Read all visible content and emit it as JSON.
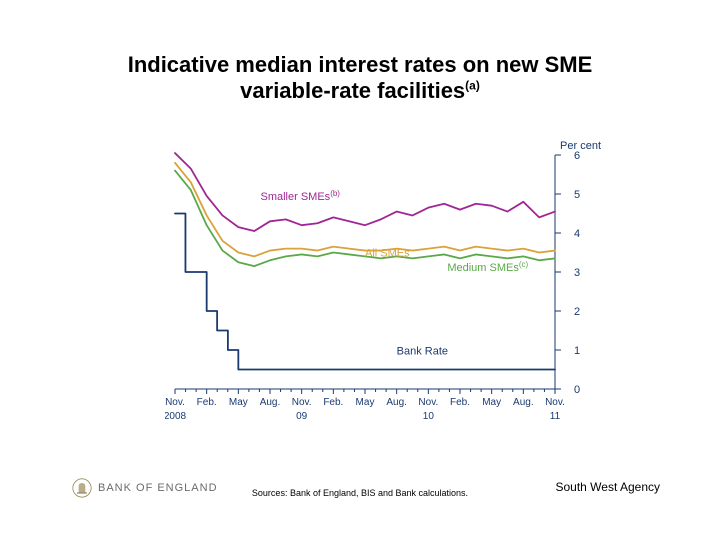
{
  "title": {
    "line1": "Indicative median interest rates on new SME",
    "line2_prefix": "variable-rate facilities",
    "line2_sup": "(a)"
  },
  "chart": {
    "type": "line",
    "background_color": "#ffffff",
    "y_axis_label": "Per cent",
    "y_axis_label_color": "#1a3a6e",
    "y_axis_label_fontsize": 11,
    "ylim": [
      0,
      6
    ],
    "yticks": [
      0,
      1,
      2,
      3,
      4,
      5,
      6
    ],
    "tick_color": "#1a3a6e",
    "tick_fontsize": 11,
    "axis_line_color": "#1a3a6e",
    "x_categories": [
      "Nov.",
      "Feb.",
      "May",
      "Aug.",
      "Nov.",
      "Feb.",
      "May",
      "Aug.",
      "Nov.",
      "Feb.",
      "May",
      "Aug.",
      "Nov."
    ],
    "x_year_labels": [
      {
        "at": 0,
        "text": "2008"
      },
      {
        "at": 4,
        "text": "09"
      },
      {
        "at": 8,
        "text": "10"
      },
      {
        "at": 12,
        "text": "11"
      }
    ],
    "x_label_color": "#1a3a6e",
    "x_label_fontsize": 10,
    "line_width": 1.8,
    "series": [
      {
        "name": "Bank Rate",
        "label": "Bank Rate",
        "color": "#1a3a6e",
        "stepped": true,
        "label_pos": {
          "x": 7.0,
          "y": 0.88
        },
        "data": [
          [
            0.0,
            4.5
          ],
          [
            0.33,
            3.0
          ],
          [
            0.67,
            3.0
          ],
          [
            1.0,
            2.0
          ],
          [
            1.33,
            1.5
          ],
          [
            1.67,
            1.0
          ],
          [
            2.0,
            0.5
          ],
          [
            3.0,
            0.5
          ],
          [
            4.0,
            0.5
          ],
          [
            5.0,
            0.5
          ],
          [
            6.0,
            0.5
          ],
          [
            7.0,
            0.5
          ],
          [
            8.0,
            0.5
          ],
          [
            9.0,
            0.5
          ],
          [
            10.0,
            0.5
          ],
          [
            11.0,
            0.5
          ],
          [
            12.0,
            0.5
          ]
        ]
      },
      {
        "name": "Medium SMEs",
        "label": "Medium SMEs",
        "label_sup": "(c)",
        "color": "#5aa948",
        "stepped": false,
        "label_pos": {
          "x": 8.6,
          "y": 3.02
        },
        "data": [
          [
            0.0,
            5.6
          ],
          [
            0.5,
            5.1
          ],
          [
            1.0,
            4.2
          ],
          [
            1.5,
            3.55
          ],
          [
            2.0,
            3.25
          ],
          [
            2.5,
            3.15
          ],
          [
            3.0,
            3.3
          ],
          [
            3.5,
            3.4
          ],
          [
            4.0,
            3.45
          ],
          [
            4.5,
            3.4
          ],
          [
            5.0,
            3.5
          ],
          [
            5.5,
            3.45
          ],
          [
            6.0,
            3.4
          ],
          [
            6.5,
            3.35
          ],
          [
            7.0,
            3.4
          ],
          [
            7.5,
            3.35
          ],
          [
            8.0,
            3.4
          ],
          [
            8.5,
            3.45
          ],
          [
            9.0,
            3.35
          ],
          [
            9.5,
            3.45
          ],
          [
            10.0,
            3.4
          ],
          [
            10.5,
            3.35
          ],
          [
            11.0,
            3.4
          ],
          [
            11.5,
            3.3
          ],
          [
            12.0,
            3.35
          ]
        ]
      },
      {
        "name": "All SMEs",
        "label": "All SMEs",
        "color": "#d9a23a",
        "stepped": false,
        "label_pos": {
          "x": 6.0,
          "y": 3.4
        },
        "data": [
          [
            0.0,
            5.8
          ],
          [
            0.5,
            5.3
          ],
          [
            1.0,
            4.45
          ],
          [
            1.5,
            3.8
          ],
          [
            2.0,
            3.5
          ],
          [
            2.5,
            3.4
          ],
          [
            3.0,
            3.55
          ],
          [
            3.5,
            3.6
          ],
          [
            4.0,
            3.6
          ],
          [
            4.5,
            3.55
          ],
          [
            5.0,
            3.65
          ],
          [
            5.5,
            3.6
          ],
          [
            6.0,
            3.55
          ],
          [
            6.5,
            3.55
          ],
          [
            7.0,
            3.6
          ],
          [
            7.5,
            3.55
          ],
          [
            8.0,
            3.6
          ],
          [
            8.5,
            3.65
          ],
          [
            9.0,
            3.55
          ],
          [
            9.5,
            3.65
          ],
          [
            10.0,
            3.6
          ],
          [
            10.5,
            3.55
          ],
          [
            11.0,
            3.6
          ],
          [
            11.5,
            3.5
          ],
          [
            12.0,
            3.55
          ]
        ]
      },
      {
        "name": "Smaller SMEs",
        "label": "Smaller SMEs",
        "label_sup": "(b)",
        "color": "#a02696",
        "stepped": false,
        "label_pos": {
          "x": 2.7,
          "y": 4.85
        },
        "data": [
          [
            0.0,
            6.05
          ],
          [
            0.5,
            5.65
          ],
          [
            1.0,
            4.95
          ],
          [
            1.5,
            4.45
          ],
          [
            2.0,
            4.15
          ],
          [
            2.5,
            4.05
          ],
          [
            3.0,
            4.3
          ],
          [
            3.5,
            4.35
          ],
          [
            4.0,
            4.2
          ],
          [
            4.5,
            4.25
          ],
          [
            5.0,
            4.4
          ],
          [
            5.5,
            4.3
          ],
          [
            6.0,
            4.2
          ],
          [
            6.5,
            4.35
          ],
          [
            7.0,
            4.55
          ],
          [
            7.5,
            4.45
          ],
          [
            8.0,
            4.65
          ],
          [
            8.5,
            4.75
          ],
          [
            9.0,
            4.6
          ],
          [
            9.5,
            4.75
          ],
          [
            10.0,
            4.7
          ],
          [
            10.5,
            4.55
          ],
          [
            11.0,
            4.8
          ],
          [
            11.5,
            4.4
          ],
          [
            12.0,
            4.55
          ]
        ]
      }
    ]
  },
  "footer": {
    "logo_text": "BANK OF ENGLAND",
    "logo_color": "#9a8a5a",
    "sources": "Sources: Bank of England, BIS and Bank calculations.",
    "agency": "South West Agency"
  }
}
